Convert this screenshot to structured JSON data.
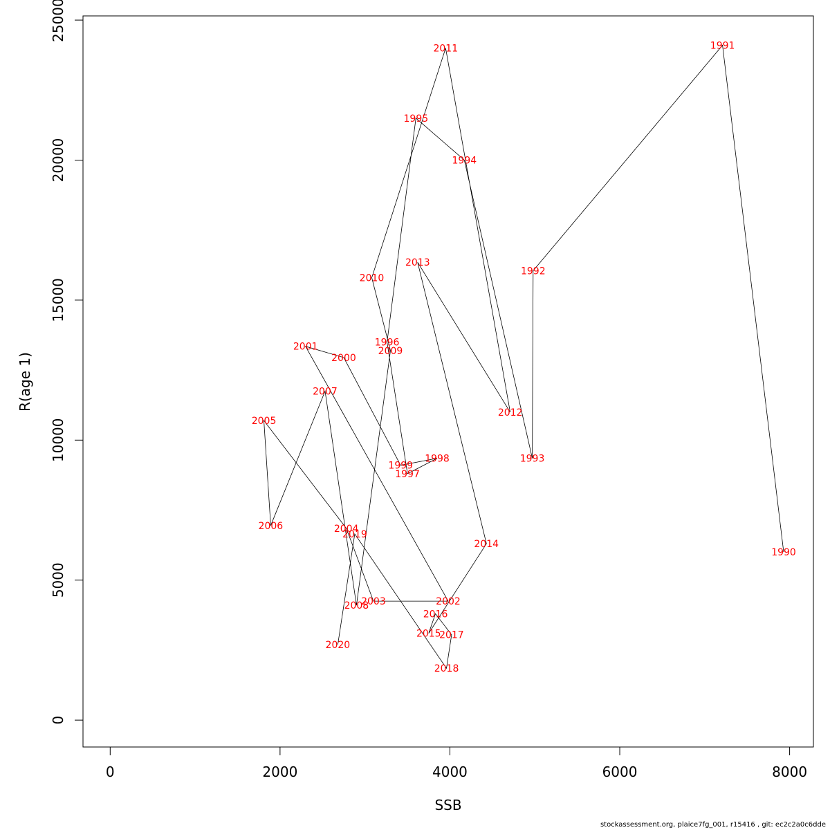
{
  "chart_data": {
    "type": "line",
    "xlabel": "SSB",
    "ylabel": "R(age 1)",
    "xlim": [
      -320,
      8280
    ],
    "ylim": [
      -960,
      25150
    ],
    "xticks": [
      0,
      2000,
      4000,
      6000,
      8000
    ],
    "yticks": [
      0,
      5000,
      10000,
      15000,
      20000,
      25000
    ],
    "points": [
      {
        "label": "1990",
        "x": 7930,
        "y": 6000
      },
      {
        "label": "1991",
        "x": 7210,
        "y": 24100
      },
      {
        "label": "1992",
        "x": 4980,
        "y": 16050
      },
      {
        "label": "1993",
        "x": 4970,
        "y": 9350
      },
      {
        "label": "1994",
        "x": 4170,
        "y": 20000
      },
      {
        "label": "1995",
        "x": 3600,
        "y": 21500
      },
      {
        "label": "1996",
        "x": 3260,
        "y": 13500
      },
      {
        "label": "1997",
        "x": 3500,
        "y": 8800
      },
      {
        "label": "1998",
        "x": 3850,
        "y": 9350
      },
      {
        "label": "1999",
        "x": 3420,
        "y": 9100
      },
      {
        "label": "2000",
        "x": 2750,
        "y": 12950
      },
      {
        "label": "2001",
        "x": 2300,
        "y": 13350
      },
      {
        "label": "2002",
        "x": 3980,
        "y": 4250
      },
      {
        "label": "2003",
        "x": 3100,
        "y": 4250
      },
      {
        "label": "2004",
        "x": 2780,
        "y": 6850
      },
      {
        "label": "2005",
        "x": 1810,
        "y": 10700
      },
      {
        "label": "2006",
        "x": 1890,
        "y": 6950
      },
      {
        "label": "2007",
        "x": 2530,
        "y": 11750
      },
      {
        "label": "2008",
        "x": 2900,
        "y": 4100
      },
      {
        "label": "2009",
        "x": 3300,
        "y": 13200
      },
      {
        "label": "2010",
        "x": 3080,
        "y": 15800
      },
      {
        "label": "2011",
        "x": 3950,
        "y": 24000
      },
      {
        "label": "2012",
        "x": 4710,
        "y": 11000
      },
      {
        "label": "2013",
        "x": 3620,
        "y": 16350
      },
      {
        "label": "2014",
        "x": 4430,
        "y": 6300
      },
      {
        "label": "2015",
        "x": 3750,
        "y": 3100
      },
      {
        "label": "2016",
        "x": 3830,
        "y": 3800
      },
      {
        "label": "2017",
        "x": 4020,
        "y": 3050
      },
      {
        "label": "2018",
        "x": 3960,
        "y": 1850
      },
      {
        "label": "2019",
        "x": 2880,
        "y": 6650
      },
      {
        "label": "2020",
        "x": 2680,
        "y": 2700
      }
    ]
  },
  "footer": "stockassessment.org, plaice7fg_001, r15416 , git: ec2c2a0c6dde"
}
